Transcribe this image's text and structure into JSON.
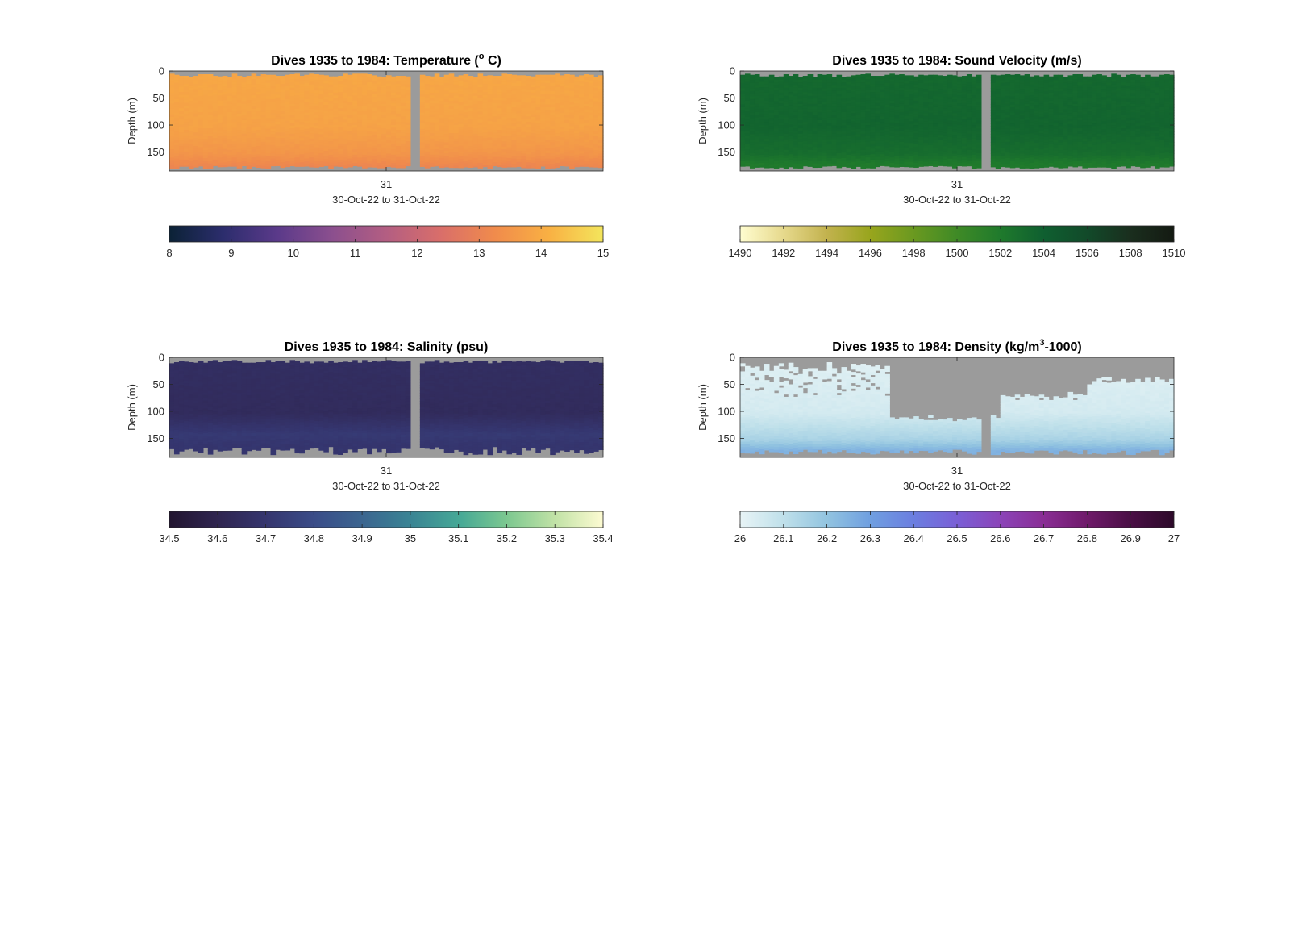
{
  "figure": {
    "background": "#ffffff",
    "nodata_color": "#9b9b9b"
  },
  "chart_data": [
    {
      "type": "heatmap",
      "variable": "temperature",
      "title_main": "Dives 1935 to 1984: Temperature (",
      "title_sup": "o",
      "title_end": " C)",
      "ylabel": "Depth (m)",
      "xlabel": "30-Oct-22 to 31-Oct-22",
      "xtick_labels": [
        "31"
      ],
      "xtick_frac": [
        0.5
      ],
      "ylim": [
        0,
        185
      ],
      "yticks": [
        0,
        50,
        100,
        150
      ],
      "yticks_reversed": true,
      "dives": [
        1935,
        1984
      ],
      "gap_frac": [
        0.56,
        0.575
      ],
      "depth_max_m": [
        175,
        180
      ],
      "colorbar": {
        "min": 8,
        "max": 15,
        "ticks": [
          "8",
          "9",
          "10",
          "11",
          "12",
          "13",
          "14",
          "15"
        ],
        "colors": [
          "#0b2236",
          "#2c2d6d",
          "#5b3a8a",
          "#8b4f8e",
          "#b35e82",
          "#d96e6a",
          "#f08b4c",
          "#f9b043",
          "#f3e55c"
        ]
      },
      "profile": [
        {
          "depth": 0,
          "value": 13.9
        },
        {
          "depth": 100,
          "value": 13.8
        },
        {
          "depth": 150,
          "value": 13.5
        },
        {
          "depth": 175,
          "value": 13.1
        }
      ],
      "series": [
        {
          "name": "",
          "values": []
        }
      ]
    },
    {
      "type": "heatmap",
      "variable": "sound_velocity",
      "title_main": "Dives 1935 to 1984: Sound Velocity (m/s)",
      "title_sup": "",
      "title_end": "",
      "ylabel": "Depth (m)",
      "xlabel": "30-Oct-22 to 31-Oct-22",
      "xtick_labels": [
        "31"
      ],
      "xtick_frac": [
        0.5
      ],
      "ylim": [
        0,
        185
      ],
      "yticks": [
        0,
        50,
        100,
        150
      ],
      "yticks_reversed": true,
      "dives": [
        1935,
        1984
      ],
      "gap_frac": [
        0.56,
        0.575
      ],
      "depth_max_m": [
        175,
        180
      ],
      "colorbar": {
        "min": 1490,
        "max": 1510,
        "ticks": [
          "1490",
          "1492",
          "1494",
          "1496",
          "1498",
          "1500",
          "1502",
          "1504",
          "1506",
          "1508",
          "1510"
        ],
        "colors": [
          "#fffdd0",
          "#e6d98c",
          "#c2b24e",
          "#98a51d",
          "#6a9920",
          "#3f8a26",
          "#1f7a2c",
          "#0f5f30",
          "#124a2a",
          "#1a2e1e",
          "#141a12"
        ]
      },
      "profile": [
        {
          "depth": 0,
          "value": 1503.3
        },
        {
          "depth": 100,
          "value": 1503.6
        },
        {
          "depth": 150,
          "value": 1503.0
        },
        {
          "depth": 170,
          "value": 1502.0
        }
      ]
    },
    {
      "type": "heatmap",
      "variable": "salinity",
      "title_main": "Dives 1935 to 1984: Salinity (psu)",
      "title_sup": "",
      "title_end": "",
      "ylabel": "Depth (m)",
      "xlabel": "30-Oct-22 to 31-Oct-22",
      "xtick_labels": [
        "31"
      ],
      "xtick_frac": [
        0.5
      ],
      "ylim": [
        0,
        185
      ],
      "yticks": [
        0,
        50,
        100,
        150
      ],
      "yticks_reversed": true,
      "dives": [
        1935,
        1984
      ],
      "gap_frac": [
        0.56,
        0.575
      ],
      "depth_max_m": [
        165,
        180
      ],
      "colorbar": {
        "min": 34.5,
        "max": 35.4,
        "ticks": [
          "34.5",
          "34.6",
          "34.7",
          "34.8",
          "34.9",
          "35",
          "35.1",
          "35.2",
          "35.3",
          "35.4"
        ],
        "colors": [
          "#221530",
          "#2f2550",
          "#35356e",
          "#3a4c88",
          "#3b6590",
          "#3a8494",
          "#45a896",
          "#7cc890",
          "#c1e2a6",
          "#fdfbd2"
        ]
      },
      "profile": [
        {
          "depth": 0,
          "value": 34.66
        },
        {
          "depth": 100,
          "value": 34.64
        },
        {
          "depth": 140,
          "value": 34.72
        },
        {
          "depth": 160,
          "value": 34.7
        }
      ]
    },
    {
      "type": "heatmap",
      "variable": "density",
      "title_main": "Dives 1935 to 1984: Density (kg/m",
      "title_sup": "3",
      "title_end": "-1000)",
      "ylabel": "Depth (m)",
      "xlabel": "30-Oct-22 to 31-Oct-22",
      "xtick_labels": [
        "31"
      ],
      "xtick_frac": [
        0.5
      ],
      "ylim": [
        0,
        185
      ],
      "yticks": [
        0,
        50,
        100,
        150
      ],
      "yticks_reversed": true,
      "dives": [
        1935,
        1984
      ],
      "gap_frac": [
        0.56,
        0.575
      ],
      "depth_max_m": [
        170,
        180
      ],
      "colorbar": {
        "min": 26,
        "max": 27,
        "ticks": [
          "26",
          "26.1",
          "26.2",
          "26.3",
          "26.4",
          "26.5",
          "26.6",
          "26.7",
          "26.8",
          "26.9",
          "27"
        ],
        "colors": [
          "#e8f4f6",
          "#bfe0ea",
          "#92c4e0",
          "#6f9fe0",
          "#6b7ee0",
          "#7a5fd6",
          "#8b44b8",
          "#8a2d95",
          "#6f1a6a",
          "#4a0f45",
          "#2d0a2a"
        ]
      },
      "profile": [
        {
          "depth": 0,
          "value": 26.02
        },
        {
          "depth": 100,
          "value": 26.05
        },
        {
          "depth": 150,
          "value": 26.15
        },
        {
          "depth": 170,
          "value": 26.25
        }
      ],
      "surface_nodata": [
        {
          "x0": 0.0,
          "x1": 0.34,
          "depth": 15,
          "speckle": true
        },
        {
          "x0": 0.34,
          "x1": 0.6,
          "depth": 110
        },
        {
          "x0": 0.6,
          "x1": 0.8,
          "depth": 70
        },
        {
          "x0": 0.8,
          "x1": 1.0,
          "depth": 40
        }
      ]
    }
  ]
}
